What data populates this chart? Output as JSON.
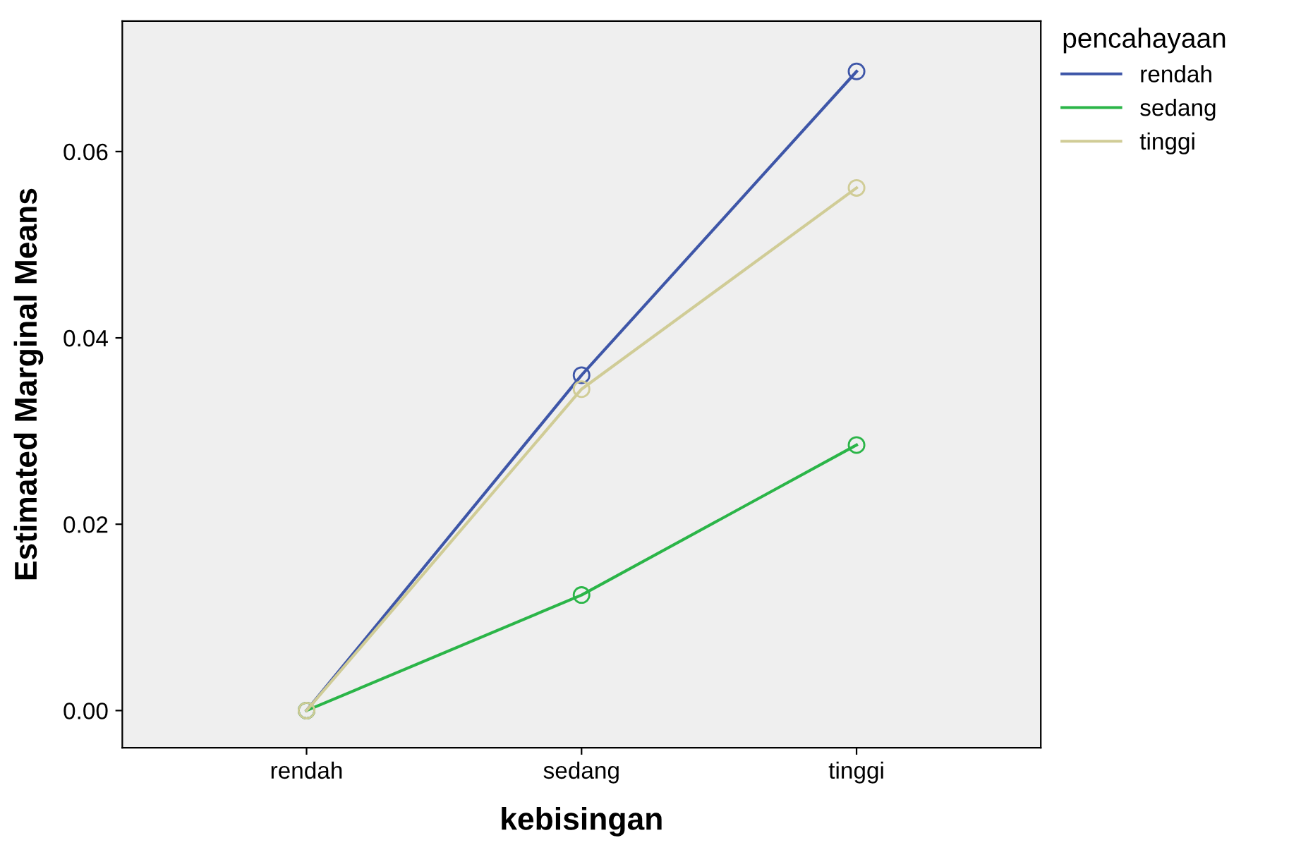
{
  "chart_data": {
    "type": "line",
    "xlabel": "kebisingan",
    "ylabel": "Estimated Marginal Means",
    "legend_title": "pencahayaan",
    "categories": [
      "rendah",
      "sedang",
      "tinggi"
    ],
    "series": [
      {
        "name": "rendah",
        "color": "#3e56a8",
        "values": [
          0.0,
          0.036,
          0.0686
        ]
      },
      {
        "name": "sedang",
        "color": "#2bb548",
        "values": [
          0.0,
          0.0124,
          0.0285
        ]
      },
      {
        "name": "tinggi",
        "color": "#d0cc96",
        "values": [
          0.0,
          0.0345,
          0.0561
        ]
      }
    ],
    "ylim": [
      -0.004,
      0.074
    ],
    "yticks": [
      {
        "value": 0,
        "label": "0.00"
      },
      {
        "value": 0.02,
        "label": "0.02"
      },
      {
        "value": 0.04,
        "label": "0.04"
      },
      {
        "value": 0.06,
        "label": "0.06"
      }
    ],
    "grid": false,
    "legend": "top right",
    "marker": "circle",
    "line_style": "solid"
  }
}
